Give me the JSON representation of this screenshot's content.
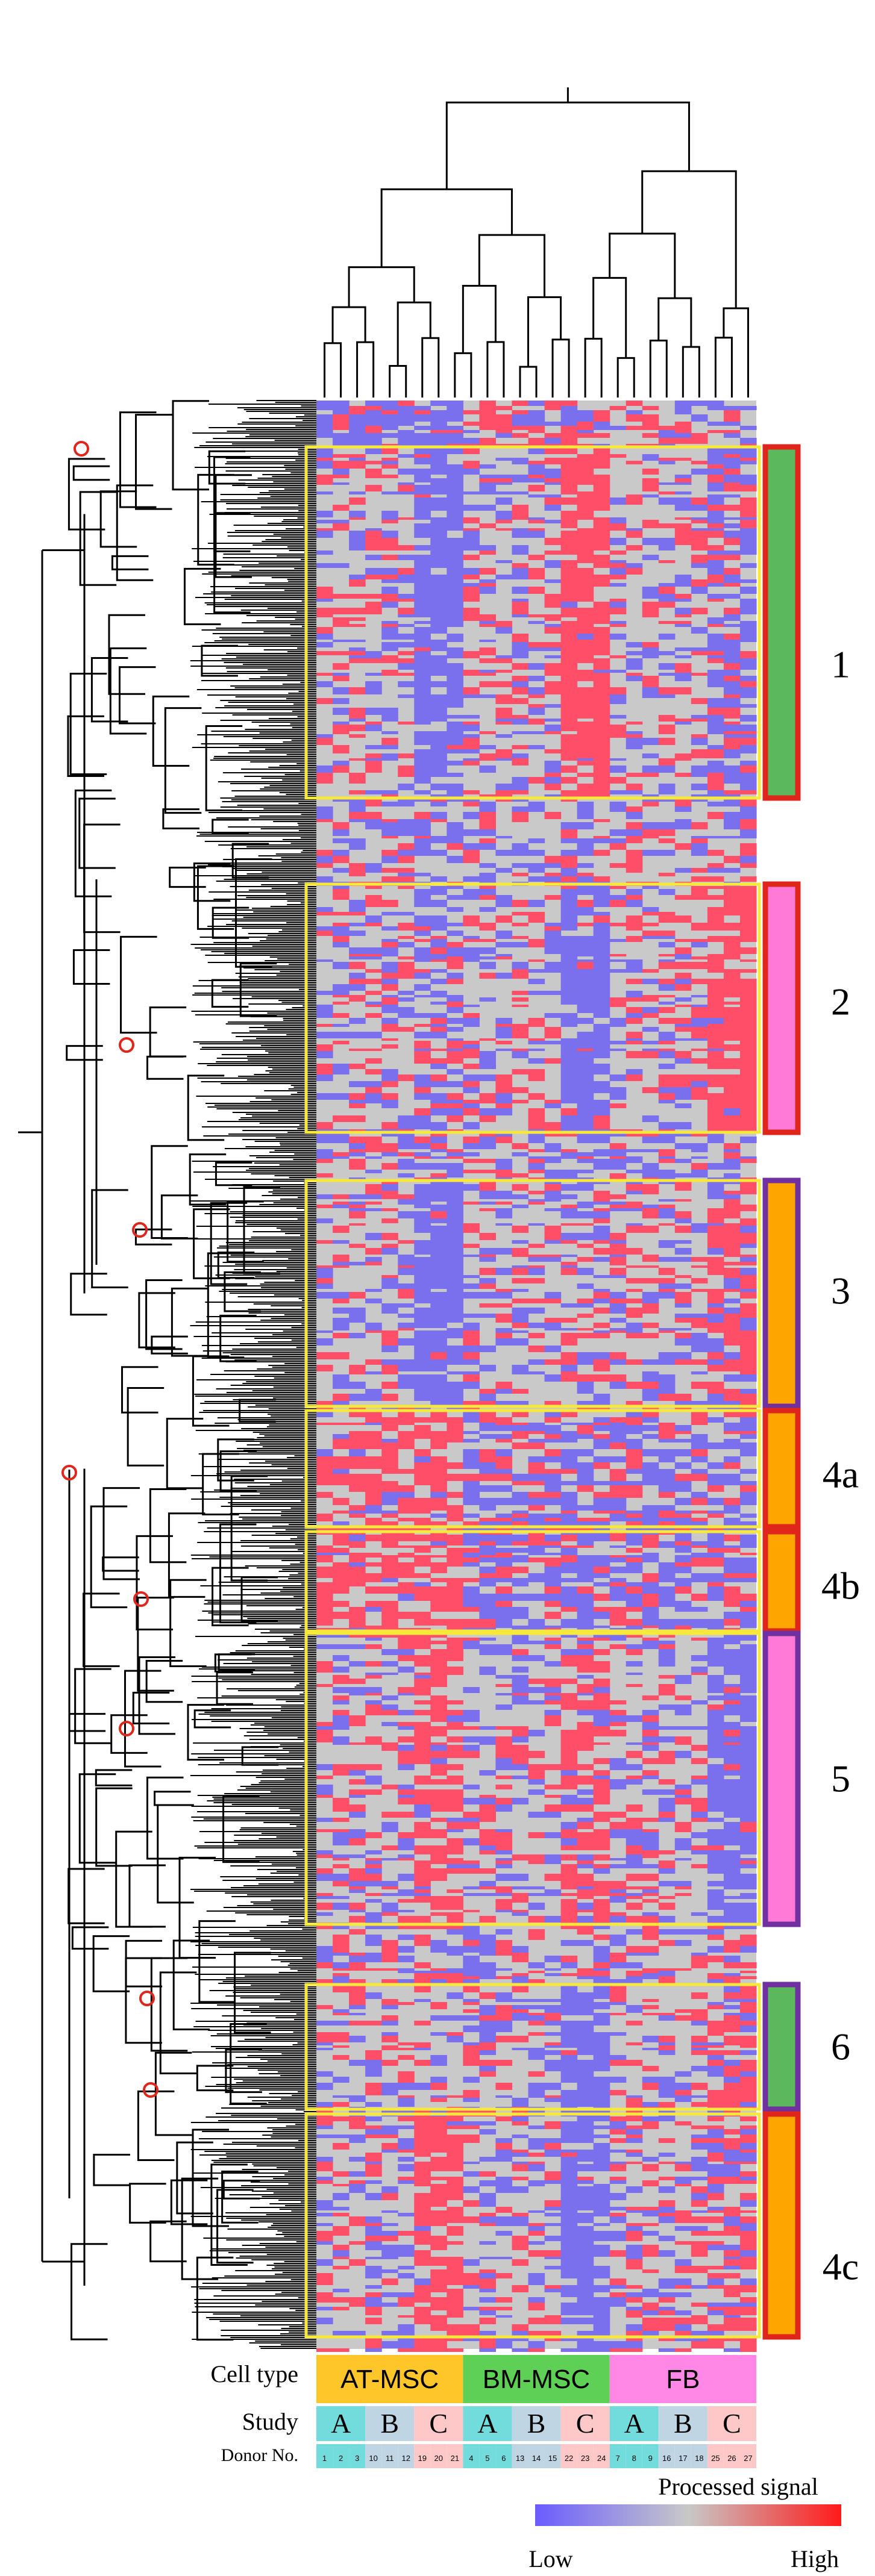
{
  "figure": {
    "clusters": [
      {
        "id": "1",
        "label": "1",
        "bar_fill": "#5cb85c",
        "bar_border": "#e0261b"
      },
      {
        "id": "2",
        "label": "2",
        "bar_fill": "#ff7ad6",
        "bar_border": "#e0261b"
      },
      {
        "id": "3",
        "label": "3",
        "bar_fill": "#ffa500",
        "bar_border": "#7030a0"
      },
      {
        "id": "4a",
        "label": "4a",
        "bar_fill": "#ffa500",
        "bar_border": "#e0261b"
      },
      {
        "id": "4b",
        "label": "4b",
        "bar_fill": "#ffa500",
        "bar_border": "#e0261b"
      },
      {
        "id": "5",
        "label": "5",
        "bar_fill": "#ff7ad6",
        "bar_border": "#7030a0"
      },
      {
        "id": "6",
        "label": "6",
        "bar_fill": "#5cb85c",
        "bar_border": "#7030a0"
      },
      {
        "id": "4c",
        "label": "4c",
        "bar_fill": "#ffa500",
        "bar_border": "#e0261b"
      }
    ],
    "annotations": {
      "cell_type_label": "Cell type",
      "study_label": "Study",
      "donor_label": "Donor No.",
      "cell_types": [
        {
          "name": "AT-MSC",
          "color": "#ffc62a"
        },
        {
          "name": "BM-MSC",
          "color": "#5dd055"
        },
        {
          "name": "FB",
          "color": "#ff88e6"
        }
      ],
      "studies": [
        {
          "name": "A",
          "color": "#72dcdc"
        },
        {
          "name": "B",
          "color": "#bfd5e4"
        },
        {
          "name": "C",
          "color": "#ffc8c8"
        },
        {
          "name": "A",
          "color": "#72dcdc"
        },
        {
          "name": "B",
          "color": "#bfd5e4"
        },
        {
          "name": "C",
          "color": "#ffc8c8"
        },
        {
          "name": "A",
          "color": "#72dcdc"
        },
        {
          "name": "B",
          "color": "#bfd5e4"
        },
        {
          "name": "C",
          "color": "#ffc8c8"
        }
      ],
      "donors": [
        "1",
        "2",
        "3",
        "10",
        "11",
        "12",
        "19",
        "20",
        "21",
        "4",
        "5",
        "6",
        "13",
        "14",
        "15",
        "22",
        "23",
        "24",
        "7",
        "8",
        "9",
        "16",
        "17",
        "18",
        "25",
        "26",
        "27"
      ]
    },
    "legend": {
      "title": "Processed signal",
      "low_label": "Low",
      "high_label": "High",
      "low_color": "#6a5cff",
      "mid_color": "#c8c8c8",
      "high_color": "#ff1a1a"
    },
    "colors": {
      "heat_low": "#7a70ee",
      "heat_mid": "#c9c9c9",
      "heat_high": "#ff4f68",
      "box_outline": "#f7e93a",
      "node_marker": "#e0261b",
      "tree": "#000000"
    }
  }
}
